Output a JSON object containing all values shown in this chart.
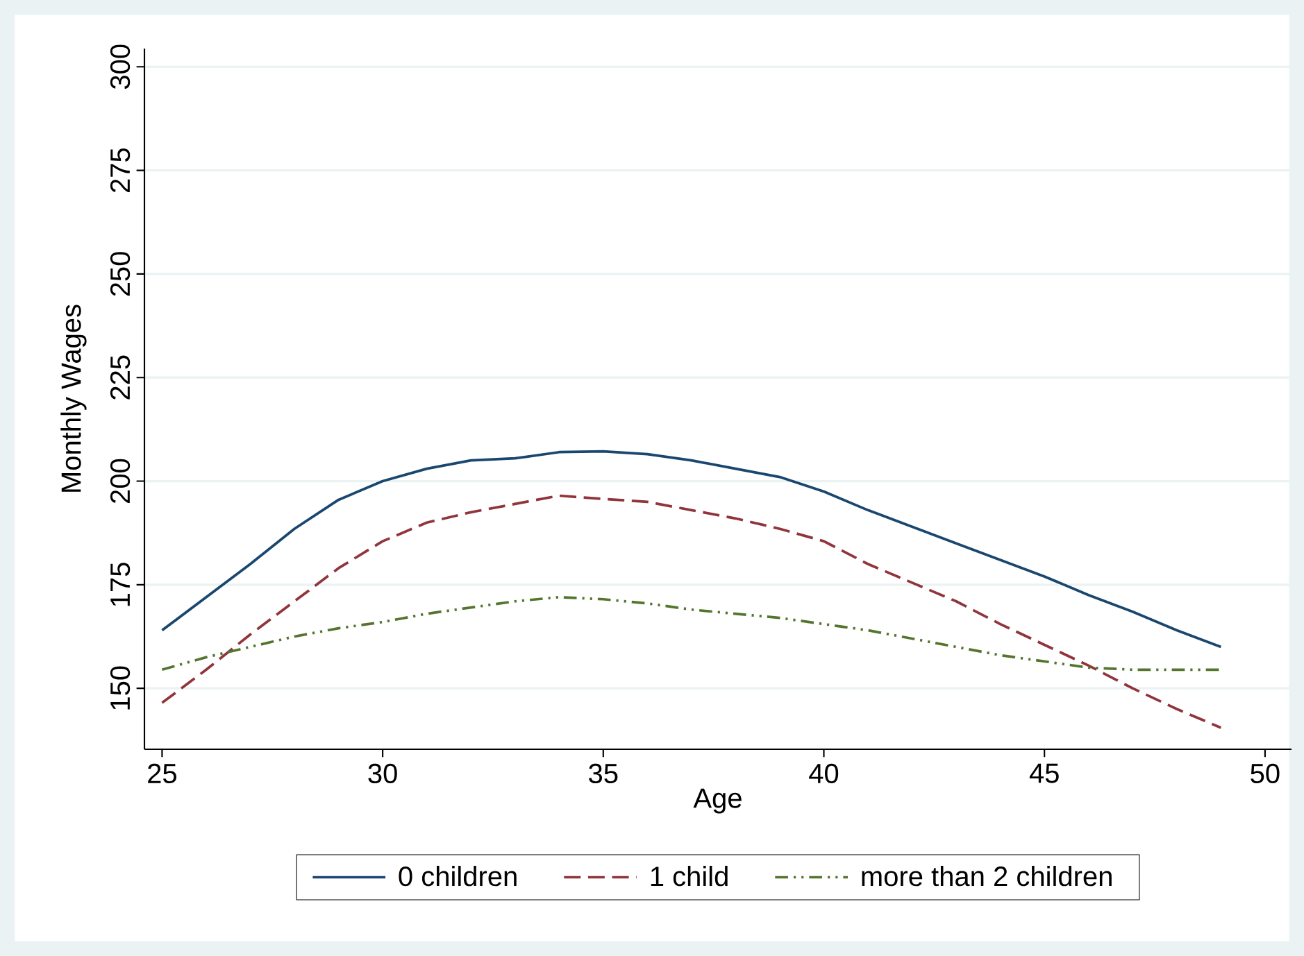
{
  "chart_data": {
    "type": "line",
    "xlabel": "Age",
    "ylabel": "Monthly Wages",
    "x": [
      25,
      26,
      27,
      28,
      29,
      30,
      31,
      32,
      33,
      34,
      35,
      36,
      37,
      38,
      39,
      40,
      41,
      42,
      43,
      44,
      45,
      46,
      47,
      48,
      49
    ],
    "series": [
      {
        "name": "0 children",
        "color": "#1a476f",
        "line_style": "solid",
        "values": [
          164,
          172,
          180,
          188.5,
          195.5,
          200,
          203,
          205,
          205.5,
          207,
          207.2,
          206.5,
          205,
          203,
          201,
          197.5,
          193,
          189,
          185,
          181,
          177,
          172.5,
          168.5,
          164,
          160
        ]
      },
      {
        "name": "1 child",
        "color": "#90353b",
        "line_style": "dashed",
        "values": [
          146.5,
          154.5,
          163,
          171,
          179,
          185.5,
          190,
          192.5,
          194.5,
          196.5,
          195.7,
          195,
          193,
          191,
          188.5,
          185.5,
          180,
          175.5,
          171,
          165.5,
          160.5,
          155.5,
          150,
          145,
          140.5
        ]
      },
      {
        "name": "more than 2 children",
        "color": "#55752f",
        "line_style": "dashdot",
        "values": [
          154.5,
          157.5,
          160,
          162.5,
          164.5,
          166,
          168,
          169.5,
          171,
          172,
          171.5,
          170.5,
          169,
          168,
          167,
          165.5,
          164,
          162,
          160,
          158,
          156.5,
          155,
          154.5,
          154.5,
          154.5
        ]
      }
    ],
    "xlim": [
      24.6,
      50.6
    ],
    "ylim": [
      135.3,
      304.4
    ],
    "xticks": [
      25,
      30,
      35,
      40,
      45,
      50
    ],
    "yticks": [
      150,
      175,
      200,
      225,
      250,
      275,
      300
    ],
    "grid": "y",
    "legend": "bottom"
  }
}
